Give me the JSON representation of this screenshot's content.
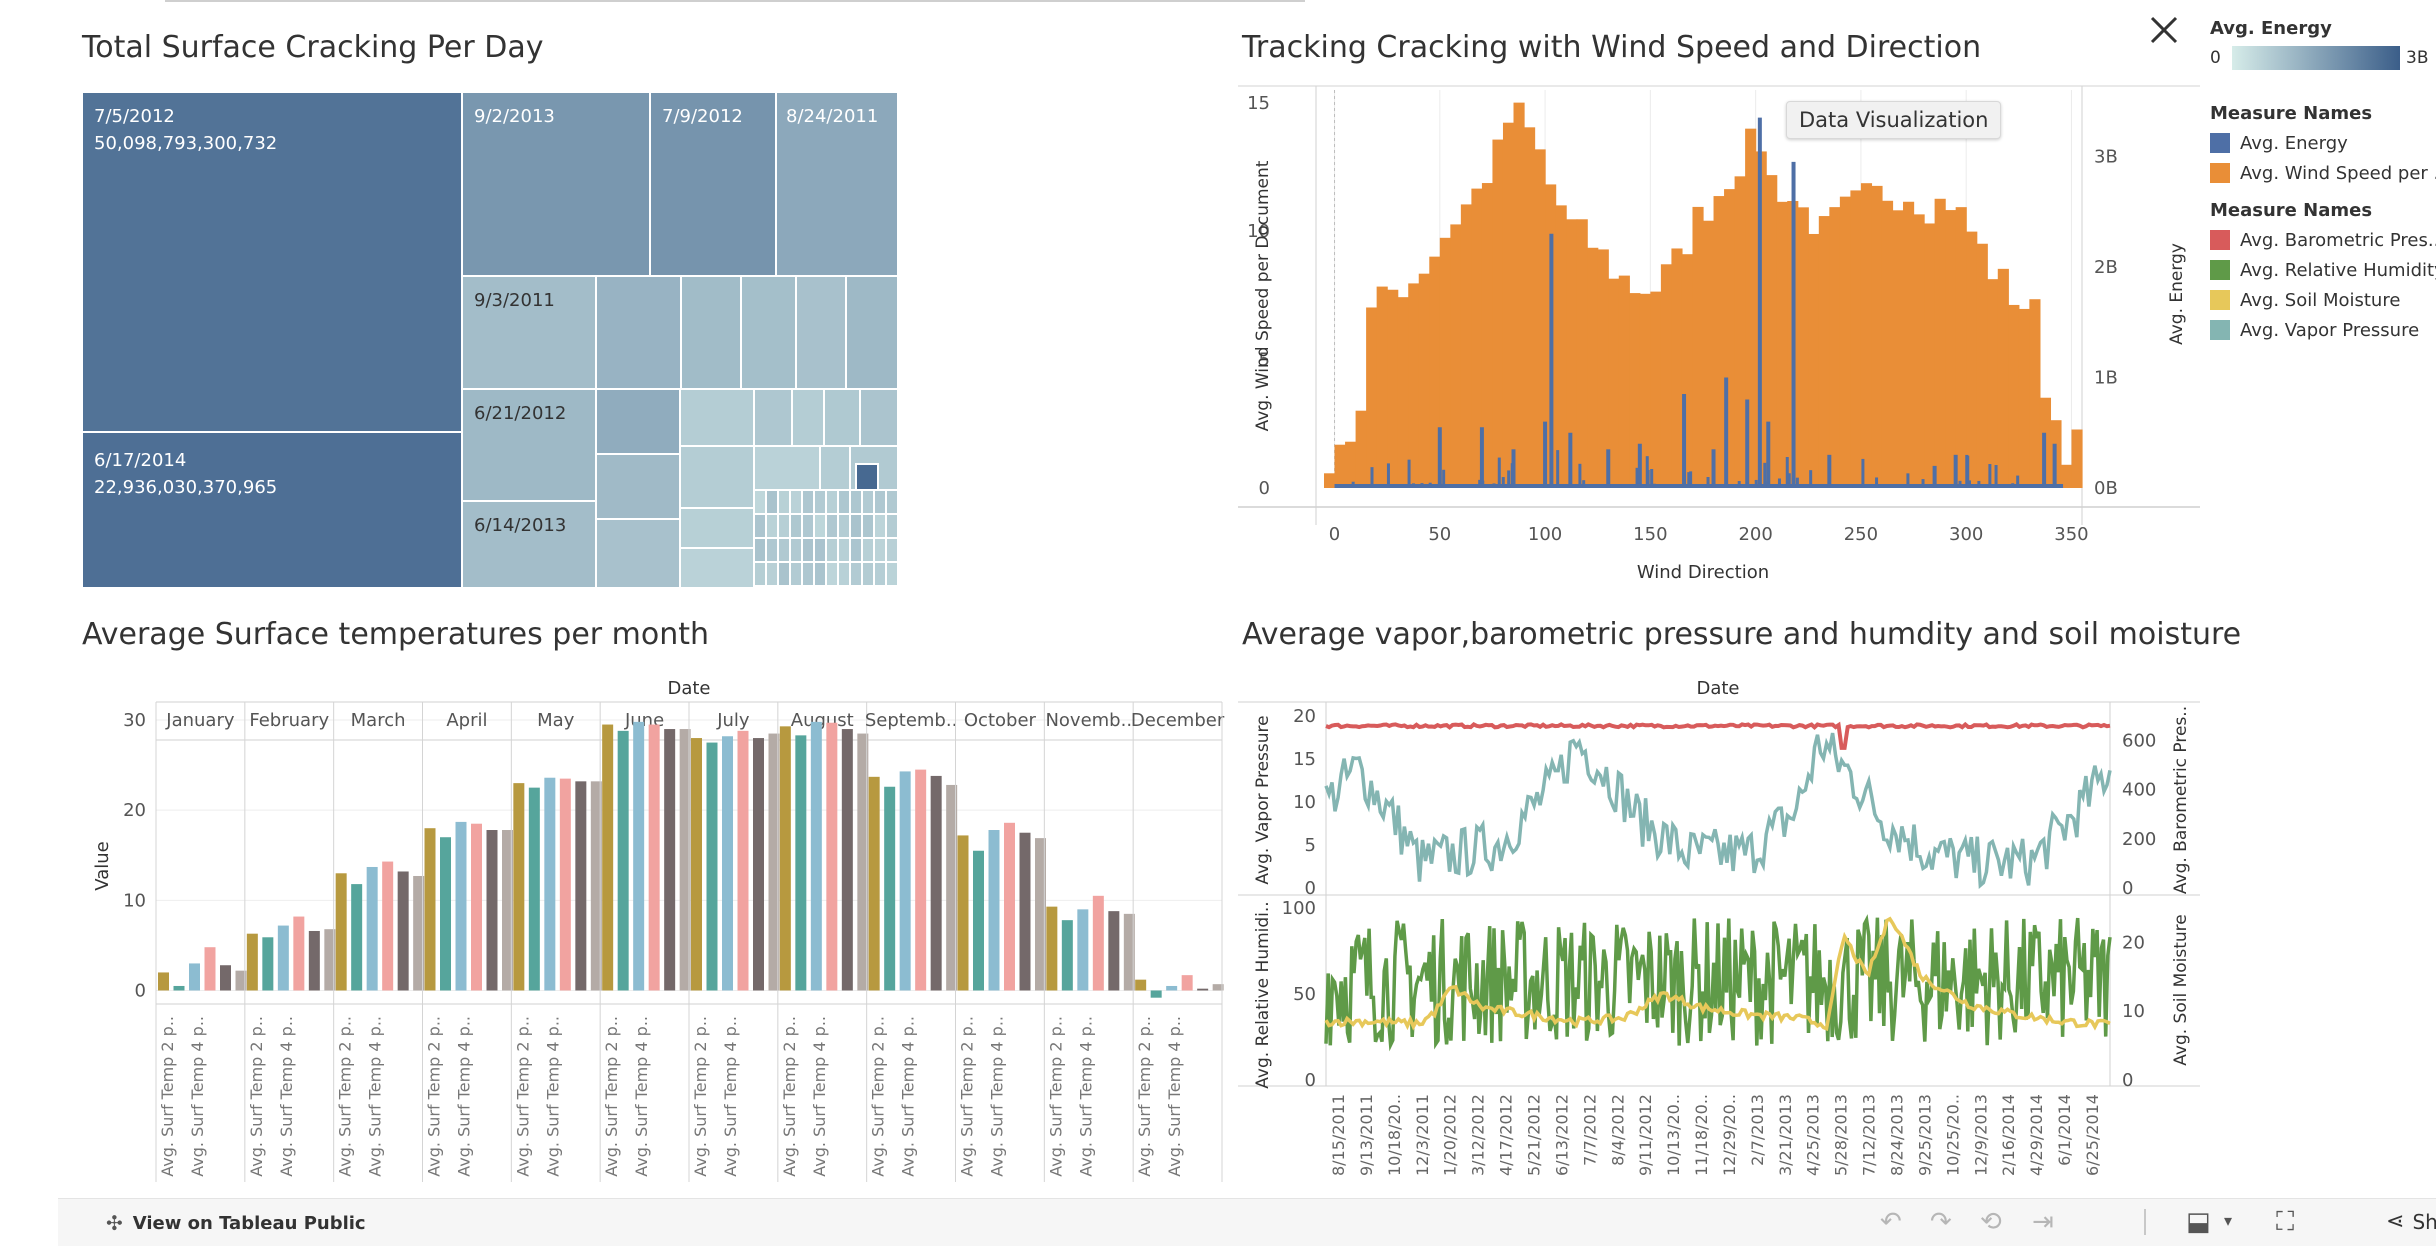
{
  "titles": {
    "treemap": "Total Surface Cracking  Per Day",
    "wind": "Tracking Cracking with Wind Speed and Direction",
    "temps": "Average Surface temperatures  per month",
    "vapor": "Average vapor,barometric pressure and humdity and soil moisture"
  },
  "legend": {
    "energy_title": "Avg. Energy",
    "energy_min": "0",
    "energy_max": "3B",
    "energy_colors": [
      "#d6ece9",
      "#3b5e89"
    ],
    "group1_title": "Measure Names",
    "group1": [
      {
        "label": "Avg. Energy",
        "color": "#4e6fa6"
      },
      {
        "label": "Avg. Wind Speed per ...",
        "color": "#e98e37"
      }
    ],
    "group2_title": "Measure Names",
    "group2": [
      {
        "label": "Avg. Barometric Pres...",
        "color": "#d85b5b"
      },
      {
        "label": "Avg. Relative Humidity",
        "color": "#5f9a48"
      },
      {
        "label": "Avg. Soil Moisture",
        "color": "#e7c85a"
      },
      {
        "label": "Avg. Vapor Pressure",
        "color": "#84b5b2"
      }
    ]
  },
  "tooltip": "Data Visualization",
  "toolbar": {
    "view_public": "View on Tableau Public",
    "share": "Share"
  },
  "chart_data": [
    {
      "type": "treemap",
      "title": "Total Surface Cracking  Per Day",
      "labeled_cells": [
        {
          "label": "7/5/2012",
          "value": "50,098,793,300,732"
        },
        {
          "label": "6/17/2014",
          "value": "22,936,030,370,965"
        },
        {
          "label": "9/2/2013"
        },
        {
          "label": "7/9/2012"
        },
        {
          "label": "8/24/2011"
        },
        {
          "label": "9/3/2011"
        },
        {
          "label": "6/21/2012"
        },
        {
          "label": "6/14/2013"
        }
      ]
    },
    {
      "type": "bar",
      "title": "Tracking Cracking with Wind Speed and Direction",
      "xlabel": "Wind Direction",
      "ylabel": "Avg. Wind Speed per Document",
      "y2label": "Avg. Energy",
      "xlim": [
        -5,
        355
      ],
      "ylim": [
        0,
        15.5
      ],
      "y2lim": [
        0,
        3.6
      ],
      "x_ticks": [
        0,
        50,
        100,
        150,
        200,
        250,
        300,
        350
      ],
      "y_ticks": [
        0,
        5,
        10,
        15
      ],
      "y2_ticks": [
        "0B",
        "1B",
        "2B",
        "3B"
      ],
      "wind_speed_profile": [
        {
          "x": -5,
          "y": 0
        },
        {
          "x": -3,
          "y": 2.5
        },
        {
          "x": 8,
          "y": 1.8
        },
        {
          "x": 15,
          "y": 6.8
        },
        {
          "x": 25,
          "y": 7.7
        },
        {
          "x": 35,
          "y": 8.1
        },
        {
          "x": 45,
          "y": 9.2
        },
        {
          "x": 55,
          "y": 10.5
        },
        {
          "x": 65,
          "y": 11.5
        },
        {
          "x": 75,
          "y": 13.0
        },
        {
          "x": 82,
          "y": 14.8
        },
        {
          "x": 88,
          "y": 14.2
        },
        {
          "x": 95,
          "y": 13.0
        },
        {
          "x": 100,
          "y": 11.8
        },
        {
          "x": 110,
          "y": 10.2
        },
        {
          "x": 120,
          "y": 9.5
        },
        {
          "x": 130,
          "y": 8.5
        },
        {
          "x": 140,
          "y": 7.8
        },
        {
          "x": 150,
          "y": 7.8
        },
        {
          "x": 160,
          "y": 8.8
        },
        {
          "x": 170,
          "y": 10.5
        },
        {
          "x": 180,
          "y": 11.5
        },
        {
          "x": 188,
          "y": 12.5
        },
        {
          "x": 195,
          "y": 13.3
        },
        {
          "x": 200,
          "y": 13.5
        },
        {
          "x": 205,
          "y": 12.0
        },
        {
          "x": 212,
          "y": 11.5
        },
        {
          "x": 220,
          "y": 10.8
        },
        {
          "x": 230,
          "y": 10.0
        },
        {
          "x": 240,
          "y": 10.8
        },
        {
          "x": 250,
          "y": 11.3
        },
        {
          "x": 260,
          "y": 11.5
        },
        {
          "x": 270,
          "y": 11.5
        },
        {
          "x": 280,
          "y": 11.0
        },
        {
          "x": 290,
          "y": 11.2
        },
        {
          "x": 300,
          "y": 10.0
        },
        {
          "x": 310,
          "y": 8.5
        },
        {
          "x": 320,
          "y": 7.5
        },
        {
          "x": 330,
          "y": 6.8
        },
        {
          "x": 336,
          "y": 3.5
        },
        {
          "x": 345,
          "y": 1.6
        },
        {
          "x": 350,
          "y": 1.7
        },
        {
          "x": 352,
          "y": 0
        }
      ],
      "energy_spikes": [
        {
          "x": 50,
          "y": 0.55
        },
        {
          "x": 70,
          "y": 0.55
        },
        {
          "x": 85,
          "y": 0.35
        },
        {
          "x": 100,
          "y": 0.6
        },
        {
          "x": 103,
          "y": 2.3
        },
        {
          "x": 112,
          "y": 0.5
        },
        {
          "x": 130,
          "y": 0.35
        },
        {
          "x": 145,
          "y": 0.4
        },
        {
          "x": 166,
          "y": 0.85
        },
        {
          "x": 180,
          "y": 0.35
        },
        {
          "x": 186,
          "y": 1.0
        },
        {
          "x": 196,
          "y": 0.8
        },
        {
          "x": 202,
          "y": 3.35
        },
        {
          "x": 206,
          "y": 0.6
        },
        {
          "x": 218,
          "y": 2.95
        },
        {
          "x": 235,
          "y": 0.3
        },
        {
          "x": 285,
          "y": 0.2
        },
        {
          "x": 295,
          "y": 0.3
        },
        {
          "x": 337,
          "y": 0.5
        },
        {
          "x": 342,
          "y": 0.4
        }
      ]
    },
    {
      "type": "bar",
      "title": "Average Surface temperatures  per month",
      "header": "Date",
      "ylabel": "Value",
      "ylim": [
        -1.5,
        32
      ],
      "y_ticks": [
        0,
        10,
        20,
        30
      ],
      "months": [
        "January",
        "February",
        "March",
        "April",
        "May",
        "June",
        "July",
        "August",
        "Septemb..",
        "October",
        "Novemb..",
        "December"
      ],
      "bar_labels": [
        "Avg. Surf Temp 2 p..",
        "Avg. Surf Temp 4 p.."
      ],
      "series_colors": [
        "#b7993f",
        "#56a59c",
        "#8cbcd1",
        "#f1a3a0",
        "#74696a",
        "#b4aba6"
      ],
      "values": [
        [
          2.0,
          0.5,
          3.0,
          4.8,
          2.8,
          2.2
        ],
        [
          6.3,
          5.9,
          7.2,
          8.2,
          6.6,
          6.8
        ],
        [
          13.0,
          11.8,
          13.7,
          14.3,
          13.2,
          12.7
        ],
        [
          18.0,
          17.0,
          18.7,
          18.5,
          17.8,
          17.8
        ],
        [
          23.0,
          22.5,
          23.6,
          23.5,
          23.2,
          23.2
        ],
        [
          29.5,
          28.8,
          29.8,
          29.5,
          29.0,
          29.0
        ],
        [
          28.0,
          27.5,
          28.2,
          28.8,
          28.0,
          28.5
        ],
        [
          29.3,
          28.3,
          29.8,
          29.7,
          29.0,
          28.5
        ],
        [
          23.7,
          22.6,
          24.3,
          24.5,
          23.8,
          22.8
        ],
        [
          17.2,
          15.5,
          17.8,
          18.6,
          17.5,
          16.9
        ],
        [
          9.3,
          7.8,
          9.0,
          10.5,
          8.8,
          8.5
        ],
        [
          1.2,
          -0.8,
          0.5,
          1.7,
          0.2,
          0.7
        ]
      ]
    },
    {
      "type": "line",
      "title": "Average vapor,barometric pressure and humdity and soil moisture",
      "header": "Date",
      "x_ticks": [
        "8/15/2011",
        "9/13/2011",
        "10/18/20..",
        "12/3/2011",
        "1/20/2012",
        "3/12/2012",
        "4/17/2012",
        "5/21/2012",
        "6/13/2012",
        "7/7/2012",
        "8/4/2012",
        "9/11/2012",
        "10/13/20..",
        "11/18/20..",
        "12/29/20..",
        "2/7/2013",
        "3/21/2013",
        "4/25/2013",
        "5/28/2013",
        "7/12/2013",
        "8/24/2013",
        "9/25/2013",
        "10/25/20..",
        "12/9/2013",
        "2/16/2014",
        "4/29/2014",
        "6/1/2014",
        "6/25/2014"
      ],
      "top_panel": {
        "ylabel": "Avg. Vapor Pressure",
        "y2label": "Avg. Barometric Pres..",
        "ylim": [
          0,
          20
        ],
        "y_ticks": [
          0,
          5,
          10,
          15,
          20
        ],
        "y2lim": [
          0,
          700
        ],
        "y2_ticks": [
          0,
          200,
          400,
          600
        ],
        "vapor_pressure_profile": [
          {
            "x": 0.0,
            "y": 10
          },
          {
            "x": 0.04,
            "y": 14
          },
          {
            "x": 0.08,
            "y": 9
          },
          {
            "x": 0.12,
            "y": 3
          },
          {
            "x": 0.17,
            "y": 4
          },
          {
            "x": 0.22,
            "y": 5
          },
          {
            "x": 0.29,
            "y": 12
          },
          {
            "x": 0.32,
            "y": 17
          },
          {
            "x": 0.36,
            "y": 13
          },
          {
            "x": 0.4,
            "y": 8
          },
          {
            "x": 0.46,
            "y": 4
          },
          {
            "x": 0.54,
            "y": 4
          },
          {
            "x": 0.6,
            "y": 9
          },
          {
            "x": 0.63,
            "y": 17
          },
          {
            "x": 0.67,
            "y": 13
          },
          {
            "x": 0.71,
            "y": 8
          },
          {
            "x": 0.77,
            "y": 4
          },
          {
            "x": 0.83,
            "y": 3
          },
          {
            "x": 0.9,
            "y": 3
          },
          {
            "x": 0.96,
            "y": 9
          },
          {
            "x": 1.0,
            "y": 14
          }
        ],
        "barometric_level": 660
      },
      "bottom_panel": {
        "ylabel": "Avg. Relative Humidi..",
        "y2label": "Avg. Soil Moisture",
        "ylim": [
          0,
          100
        ],
        "y_ticks": [
          0,
          50,
          100
        ],
        "y2lim": [
          0,
          25
        ],
        "y2_ticks": [
          0,
          10,
          20
        ],
        "soil_moisture_profile": [
          {
            "x": 0.0,
            "y": 8.5
          },
          {
            "x": 0.06,
            "y": 8.5
          },
          {
            "x": 0.12,
            "y": 8.2
          },
          {
            "x": 0.14,
            "y": 10
          },
          {
            "x": 0.16,
            "y": 13.5
          },
          {
            "x": 0.2,
            "y": 10.5
          },
          {
            "x": 0.26,
            "y": 9.5
          },
          {
            "x": 0.32,
            "y": 8.5
          },
          {
            "x": 0.38,
            "y": 9
          },
          {
            "x": 0.43,
            "y": 12.5
          },
          {
            "x": 0.48,
            "y": 10.5
          },
          {
            "x": 0.54,
            "y": 9.5
          },
          {
            "x": 0.6,
            "y": 9
          },
          {
            "x": 0.64,
            "y": 8
          },
          {
            "x": 0.66,
            "y": 21
          },
          {
            "x": 0.69,
            "y": 15
          },
          {
            "x": 0.72,
            "y": 24
          },
          {
            "x": 0.76,
            "y": 15
          },
          {
            "x": 0.82,
            "y": 11
          },
          {
            "x": 0.88,
            "y": 9.5
          },
          {
            "x": 0.94,
            "y": 8.5
          },
          {
            "x": 1.0,
            "y": 8
          }
        ],
        "relative_humidity_band": [
          20,
          95
        ]
      }
    }
  ]
}
